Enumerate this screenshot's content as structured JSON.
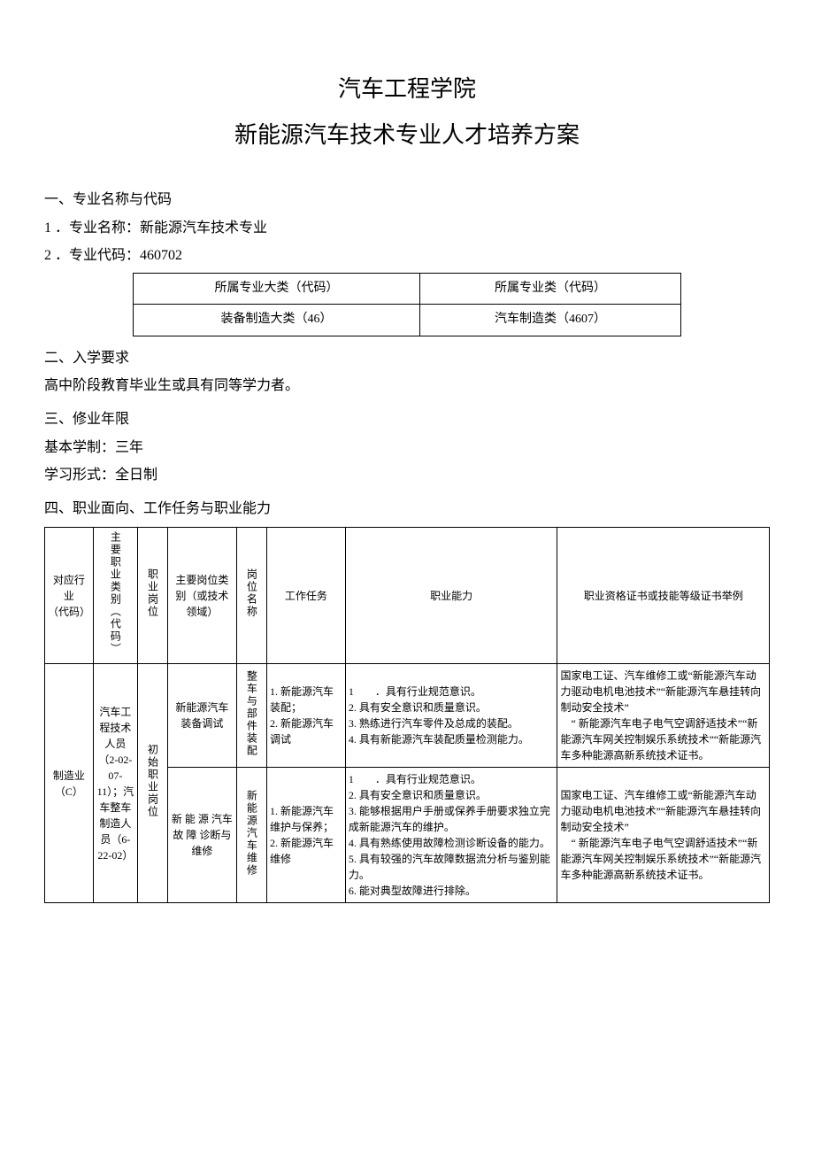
{
  "title_line1": "汽车工程学院",
  "title_line2": "新能源汽车技术专业人才培养方案",
  "section1": {
    "heading": "一、专业名称与代码",
    "line1": "1 ．专业名称：新能源汽车技术专业",
    "line2": "2 ．专业代码：460702",
    "table": {
      "h1": "所属专业大类（代码）",
      "h2": "所属专业类（代码）",
      "r1": "装备制造大类（46）",
      "r2": "汽车制造类（4607）"
    }
  },
  "section2": {
    "heading": "二、入学要求",
    "line1": "高中阶段教育毕业生或具有同等学力者。"
  },
  "section3": {
    "heading": "三、修业年限",
    "line1": "基本学制：三年",
    "line2": "学习形式：全日制"
  },
  "section4": {
    "heading": "四、职业面向、工作任务与职业能力",
    "headers": {
      "c1": "对应行业\n（代码）",
      "c2": "主要职业类别（代码）",
      "c3": "职业岗位",
      "c4": "主要岗位类别（或技术领域）",
      "c5": "岗位名称",
      "c6": "工作任务",
      "c7": "职业能力",
      "c8": "职业资格证书或技能等级证书举例"
    },
    "row_group": {
      "industry": "制造业（C）",
      "occupation": "汽车工程技术人员（2-02-07-11）；汽车整车制造人员（6-22-02）",
      "post_level": "初始职业岗位",
      "rows": [
        {
          "main_post": "新能源汽车装备调试",
          "post_name": "整车与部件装配",
          "tasks": "1. 新能源汽车装配；\n2. 新能源汽车调试",
          "ability": "1　　．具有行业规范意识。\n2. 具有安全意识和质量意识。\n3. 熟练进行汽车零件及总成的装配。\n4. 具有新能源汽车装配质量检测能力。",
          "cert": "国家电工证、汽车维修工或“新能源汽车动力驱动电机电池技术”“新能源汽车悬挂转向制动安全技术”\n　“ 新能源汽车电子电气空调舒适技术”“新能源汽车网关控制娱乐系统技术”“新能源汽车多种能源高新系统技术证书。"
        },
        {
          "main_post": "新 能 源 汽车 故 障 诊断与维修",
          "post_name": "新能源汽车维修",
          "tasks": "1. 新能源汽车维护与保养；\n2. 新能源汽车维修",
          "ability": "1　　．具有行业规范意识。\n2. 具有安全意识和质量意识。\n3. 能够根据用户手册或保养手册要求独立完成新能源汽车的维护。\n4. 具有熟练使用故障检测诊断设备的能力。\n5. 具有较强的汽车故障数据流分析与鉴别能力。\n6. 能对典型故障进行排除。",
          "cert": "国家电工证、汽车维修工或“新能源汽车动力驱动电机电池技术”“新能源汽车悬挂转向制动安全技术”\n　“ 新能源汽车电子电气空调舒适技术”“新能源汽车网关控制娱乐系统技术”“新能源汽车多种能源高新系统技术证书。"
        }
      ]
    }
  }
}
